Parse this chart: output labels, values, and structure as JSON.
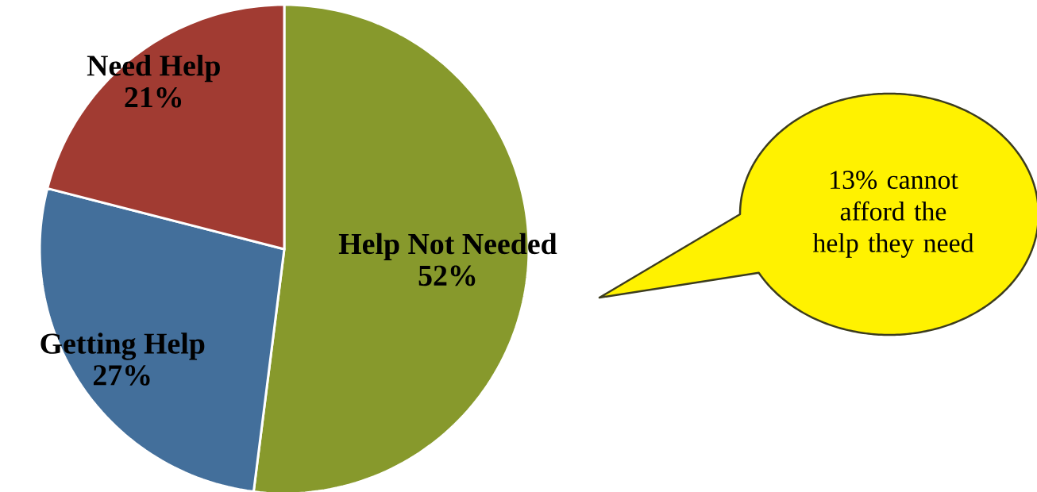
{
  "chart_data": {
    "type": "pie",
    "categories": [
      "Help Not Needed",
      "Getting Help",
      "Need Help"
    ],
    "values": [
      52,
      27,
      21
    ],
    "colors": [
      "#87992c",
      "#436f9b",
      "#a13b32"
    ],
    "value_labels": [
      "52%",
      "27%",
      "21%"
    ],
    "annotations": [
      "13% cannot afford the help they need"
    ]
  }
}
